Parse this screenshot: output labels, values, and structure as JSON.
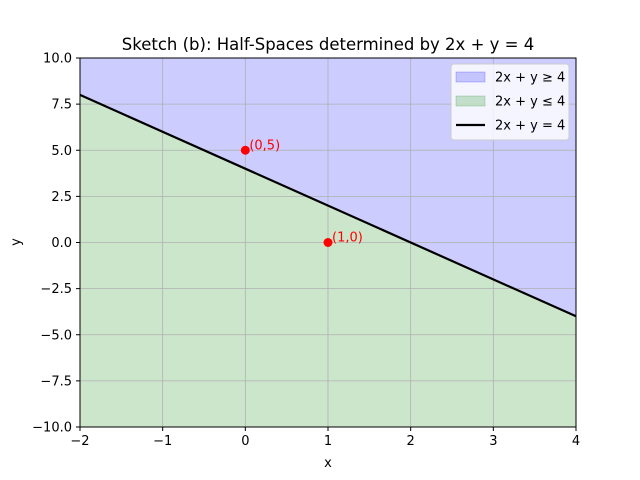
{
  "chart_data": {
    "type": "area",
    "title": "Sketch (b): Half-Spaces determined by 2x + y = 4",
    "xlabel": "x",
    "ylabel": "y",
    "xlim": [
      -2,
      4
    ],
    "ylim": [
      -10,
      10
    ],
    "xticks": [
      -2,
      -1,
      0,
      1,
      2,
      3,
      4
    ],
    "xtick_labels": [
      "−2",
      "−1",
      "0",
      "1",
      "2",
      "3",
      "4"
    ],
    "yticks": [
      -10,
      -7.5,
      -5,
      -2.5,
      0,
      2.5,
      5,
      7.5,
      10
    ],
    "ytick_labels": [
      "−10.0",
      "−7.5",
      "−5.0",
      "−2.5",
      "0.0",
      "2.5",
      "5.0",
      "7.5",
      "10.0"
    ],
    "grid": true,
    "legend_position": "top-right",
    "series": [
      {
        "name": "2x + y ≥ 4",
        "kind": "fill-above",
        "color": "#0000ff",
        "alpha": 0.2
      },
      {
        "name": "2x + y ≤ 4",
        "kind": "fill-below",
        "color": "#008000",
        "alpha": 0.2
      },
      {
        "name": "2x + y = 4",
        "kind": "line",
        "color": "#000000",
        "x": [
          -2,
          4
        ],
        "y": [
          8,
          -4
        ]
      }
    ],
    "points": [
      {
        "x": 0,
        "y": 5,
        "label": "(0,5)",
        "color": "#ff0000"
      },
      {
        "x": 1,
        "y": 0,
        "label": "(1,0)",
        "color": "#ff0000"
      }
    ]
  }
}
